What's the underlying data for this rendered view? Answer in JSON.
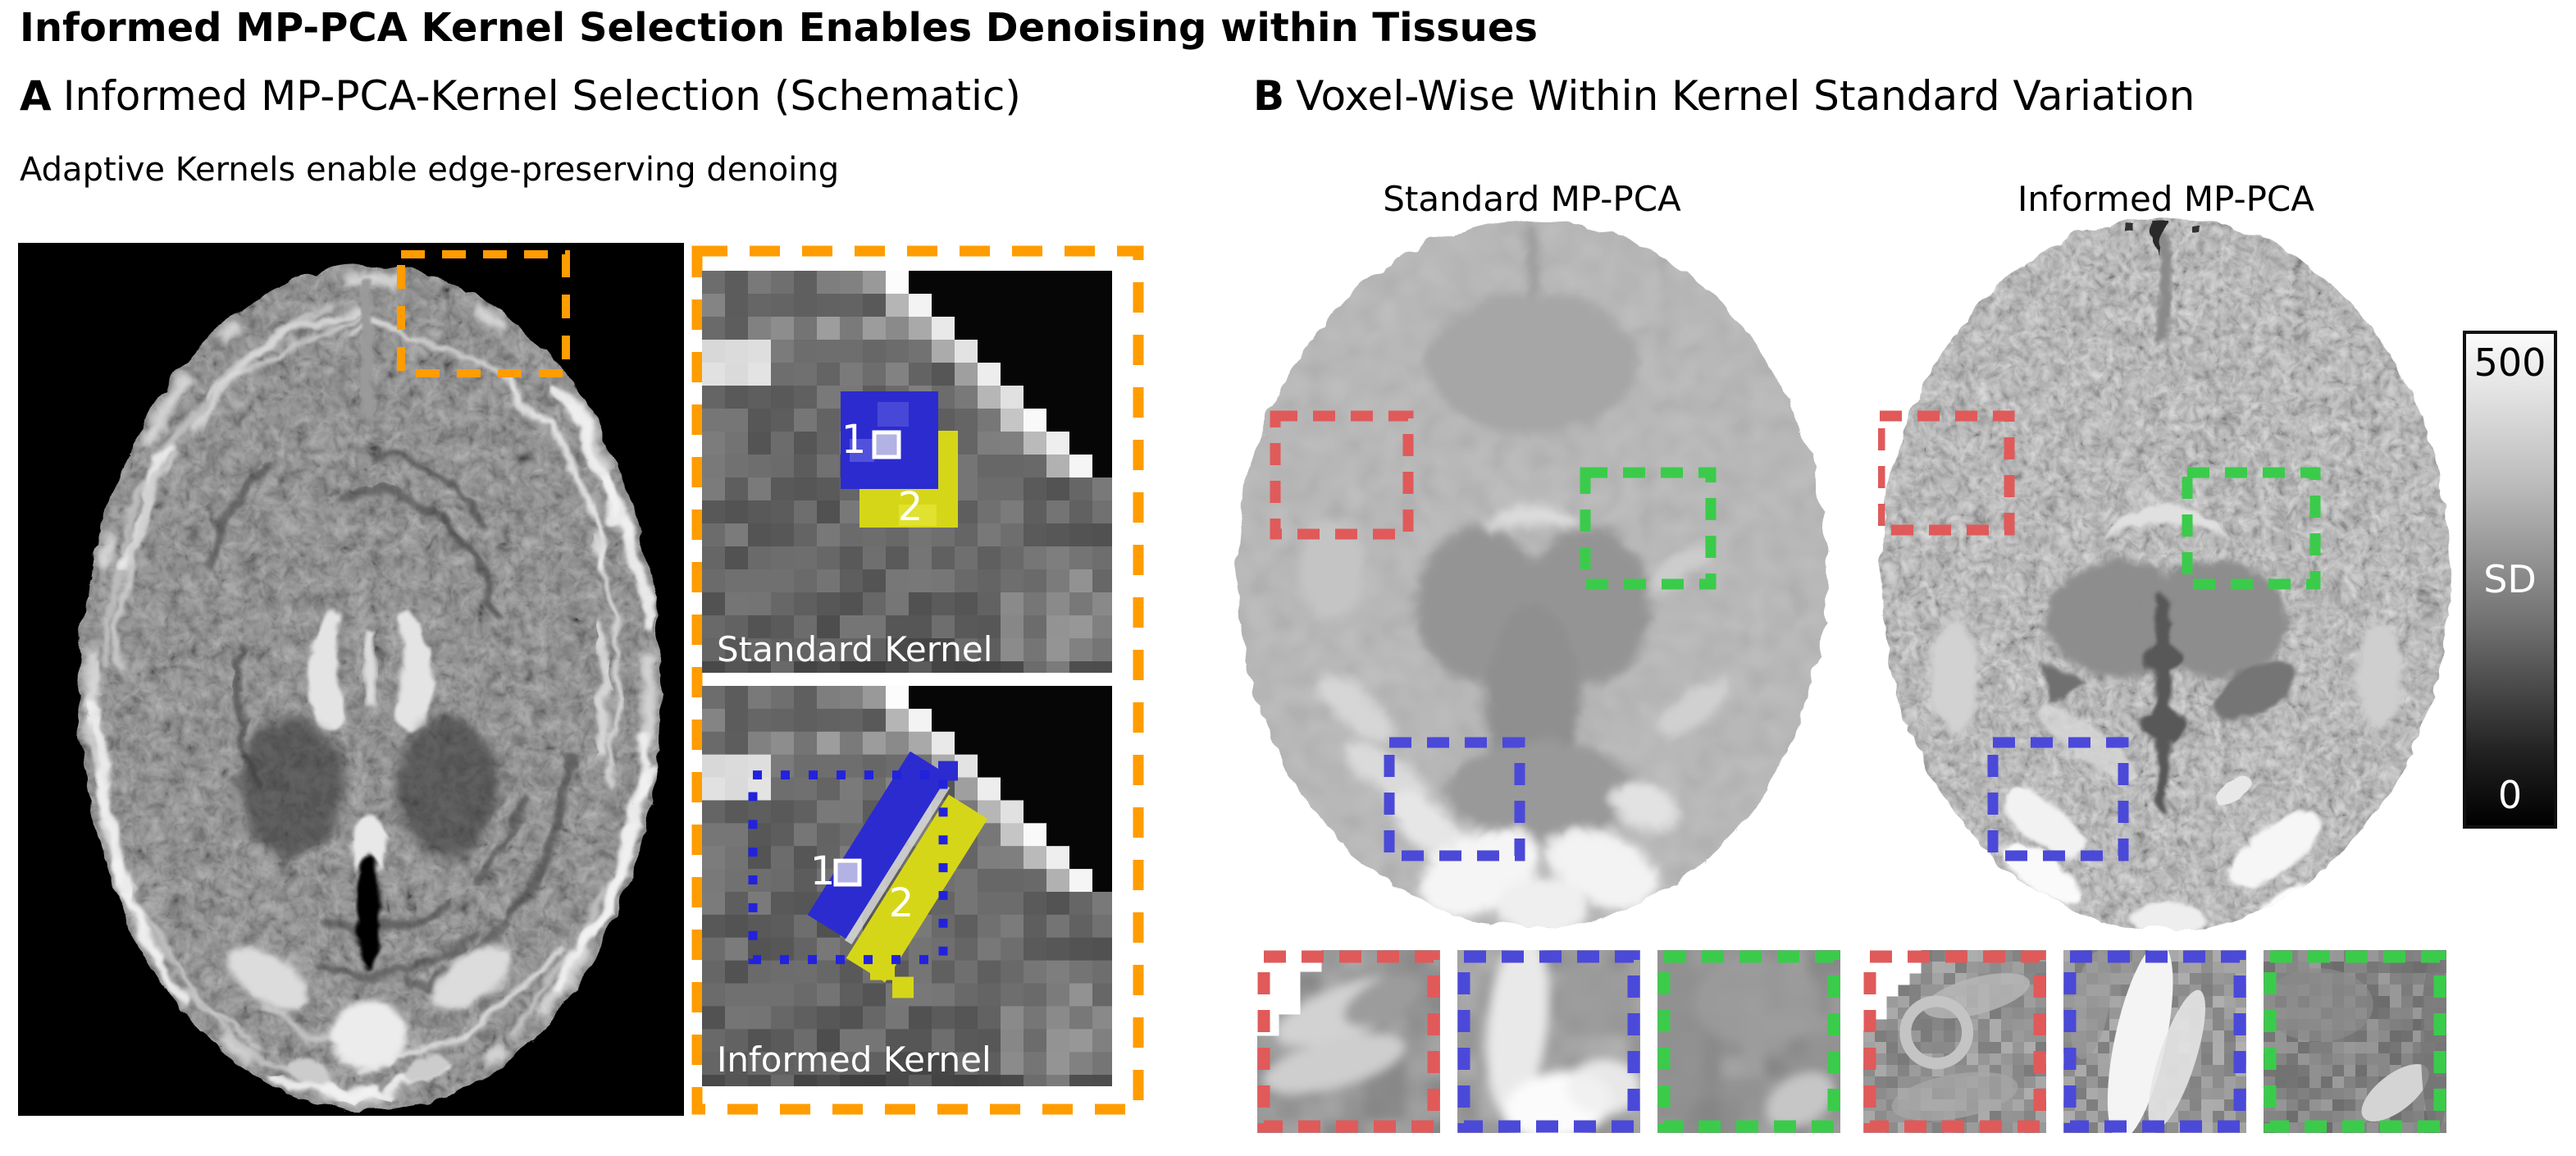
{
  "title": "Informed MP-PCA Kernel Selection Enables Denoising within Tissues",
  "panel_a": {
    "label": "A",
    "heading": "Informed MP-PCA-Kernel Selection (Schematic)",
    "subtitle": "Adaptive Kernels enable edge-preserving denoing",
    "standard_kernel": {
      "caption": "Standard Kernel",
      "kernel1_label": "1",
      "kernel2_label": "2"
    },
    "informed_kernel": {
      "caption": "Informed Kernel",
      "kernel1_label": "1",
      "kernel2_label": "2"
    }
  },
  "panel_b": {
    "label": "B",
    "heading": "Voxel-Wise Within Kernel Standard Variation",
    "left_column_title": "Standard MP-PCA",
    "right_column_title": "Informed MP-PCA"
  },
  "colorbar": {
    "max_label": "500",
    "axis_label": "SD",
    "min_label": "0"
  },
  "colors": {
    "accent_orange": "#ff9c00",
    "roi_red": "#e05a5a",
    "roi_green": "#3bcb4b",
    "roi_blue": "#4b49d8",
    "kernel_blue": "#2b2bd0",
    "kernel_yellow": "#d6d619"
  }
}
